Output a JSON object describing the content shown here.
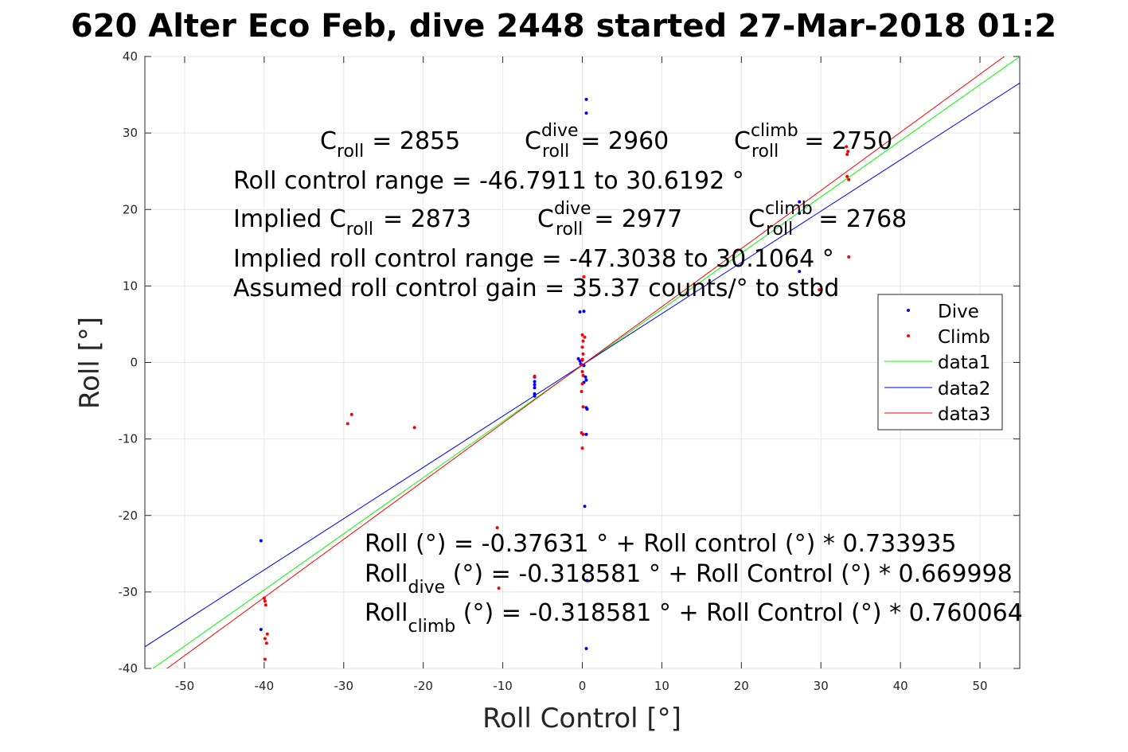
{
  "chart_data": {
    "type": "scatter",
    "title": "620 Alter Eco Feb, dive 2448 started 27-Mar-2018 01:2",
    "xlabel": "Roll Control [°]",
    "ylabel": "Roll [°]",
    "xlim": [
      -55,
      55
    ],
    "ylim": [
      -40,
      40
    ],
    "xticks": [
      -50,
      -40,
      -30,
      -20,
      -10,
      0,
      10,
      20,
      30,
      40,
      50
    ],
    "yticks": [
      -40,
      -30,
      -20,
      -10,
      0,
      10,
      20,
      30,
      40
    ],
    "xtick_labels": [
      "-50",
      "-40",
      "-30",
      "-20",
      "-10",
      "0",
      "10",
      "20",
      "30",
      "40",
      "50"
    ],
    "ytick_labels": [
      "-40",
      "-30",
      "-20",
      "-10",
      "0",
      "10",
      "20",
      "30",
      "40"
    ],
    "grid": true,
    "legend_position": "right-middle",
    "series": [
      {
        "name": "Dive",
        "kind": "points",
        "color": "#0000ff",
        "points": [
          [
            0.5,
            34.4
          ],
          [
            0.5,
            32.6
          ],
          [
            27.3,
            21.0
          ],
          [
            27.3,
            19.5
          ],
          [
            27.3,
            11.9
          ],
          [
            0.2,
            6.7
          ],
          [
            -0.3,
            6.6
          ],
          [
            -6.0,
            -1.9
          ],
          [
            -6.0,
            -2.5
          ],
          [
            -6.0,
            -2.9
          ],
          [
            -6.0,
            -3.3
          ],
          [
            -6.0,
            -4.1
          ],
          [
            -6.0,
            -4.4
          ],
          [
            -0.5,
            0.5
          ],
          [
            -0.3,
            0.2
          ],
          [
            -0.2,
            -0.2
          ],
          [
            0.0,
            0.3
          ],
          [
            0.2,
            -0.4
          ],
          [
            0.4,
            -1.9
          ],
          [
            0.5,
            -2.3
          ],
          [
            0.2,
            -2.6
          ],
          [
            0.5,
            -5.9
          ],
          [
            0.6,
            -6.1
          ],
          [
            0.5,
            -9.4
          ],
          [
            0.3,
            -18.8
          ],
          [
            -40.4,
            -23.3
          ],
          [
            -40.4,
            -34.9
          ],
          [
            0.6,
            -28.5
          ],
          [
            0.5,
            -37.4
          ]
        ]
      },
      {
        "name": "Climb",
        "kind": "points",
        "color": "#ff0000",
        "points": [
          [
            33.2,
            28.2
          ],
          [
            33.4,
            27.6
          ],
          [
            33.3,
            27.2
          ],
          [
            33.3,
            24.3
          ],
          [
            33.5,
            23.9
          ],
          [
            33.5,
            13.8
          ],
          [
            29.8,
            9.5
          ],
          [
            0.2,
            11.2
          ],
          [
            0.0,
            3.6
          ],
          [
            0.3,
            3.3
          ],
          [
            0.1,
            2.8
          ],
          [
            0.0,
            2.0
          ],
          [
            0.1,
            1.1
          ],
          [
            0.0,
            0.4
          ],
          [
            -0.1,
            -0.3
          ],
          [
            0.0,
            -1.2
          ],
          [
            0.1,
            -1.7
          ],
          [
            0.0,
            -2.8
          ],
          [
            -0.1,
            -3.8
          ],
          [
            0.1,
            -5.8
          ],
          [
            -0.1,
            -9.2
          ],
          [
            0.1,
            -9.4
          ],
          [
            0.0,
            -11.2
          ],
          [
            -6.0,
            -1.8
          ],
          [
            -29.5,
            -8.0
          ],
          [
            -29.0,
            -6.8
          ],
          [
            -21.1,
            -8.5
          ],
          [
            -10.7,
            -21.6
          ],
          [
            -10.5,
            -29.5
          ],
          [
            -40.0,
            -30.8
          ],
          [
            -39.9,
            -31.2
          ],
          [
            -39.8,
            -31.7
          ],
          [
            -39.6,
            -35.5
          ],
          [
            -39.9,
            -36.1
          ],
          [
            -39.7,
            -36.7
          ],
          [
            -39.9,
            -38.8
          ]
        ]
      },
      {
        "name": "data1",
        "kind": "line",
        "color": "#00ff00",
        "intercept": -0.37631,
        "slope": 0.733935
      },
      {
        "name": "data2",
        "kind": "line",
        "color": "#0000ff",
        "intercept": -0.318581,
        "slope": 0.669998
      },
      {
        "name": "data3",
        "kind": "line",
        "color": "#ff0000",
        "intercept": -0.318581,
        "slope": 0.760064
      }
    ],
    "annotations_top": {
      "c_roll": "= 2855",
      "c_dive": "= 2960",
      "c_climb": "= 2750",
      "range": "Roll control range = -46.7911 to 30.6192 °",
      "implied_prefix": "Implied C",
      "implied_c": "= 2873",
      "implied_dive": "= 2977",
      "implied_climb": "= 2768",
      "implied_range": "Implied roll control range = -47.3038 to 30.1064 °",
      "gain": "Assumed roll control gain = 35.37 counts/° to stbd"
    },
    "annotations_bottom": {
      "line1": "Roll (°) = -0.37631 ° + Roll control (°) * 0.733935",
      "roll": "Roll",
      "line2_rest": " (°) = -0.318581 ° + Roll Control (°) * 0.669998",
      "line3_rest": " (°) = -0.318581 ° + Roll Control (°) * 0.760064"
    },
    "symbols": {
      "C": "C",
      "roll": "roll",
      "dive": "dive",
      "climb": "climb"
    }
  }
}
